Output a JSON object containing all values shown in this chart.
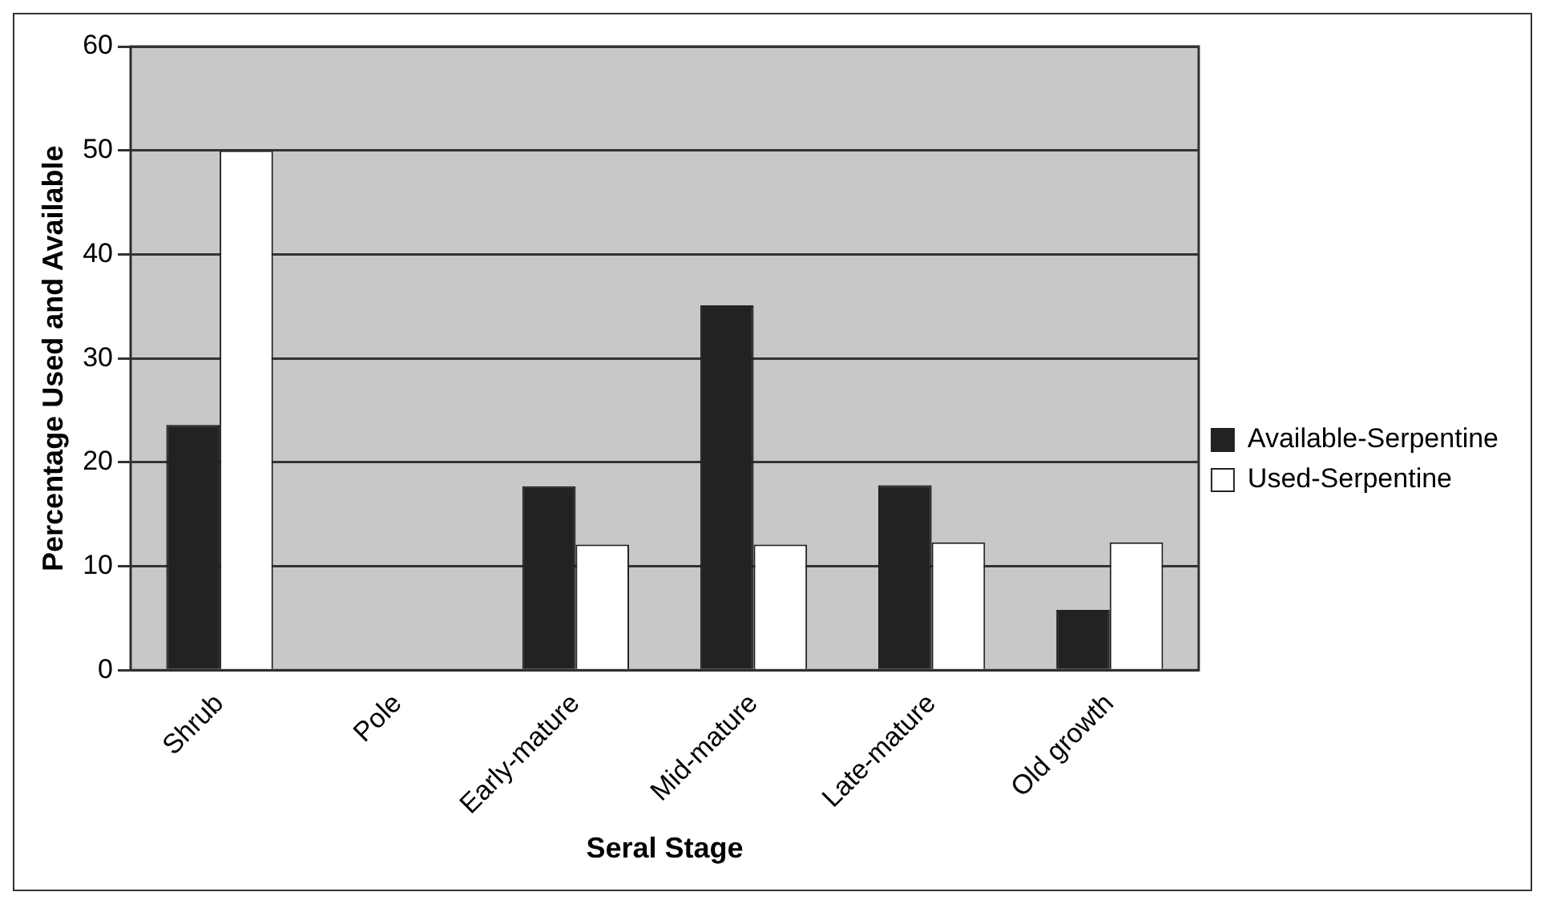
{
  "chart_data": {
    "type": "bar",
    "xlabel": "Seral Stage",
    "ylabel": "Percentage Used and Available",
    "categories": [
      "Shrub",
      "Pole",
      "Early-mature",
      "Mid-mature",
      "Late-mature",
      "Old growth"
    ],
    "series": [
      {
        "name": "Available-Serpentine",
        "color": "#222222",
        "values": [
          23.6,
          null,
          17.7,
          35.1,
          17.8,
          5.8
        ]
      },
      {
        "name": "Used-Serpentine",
        "color": "#ffffff",
        "values": [
          50,
          null,
          12.1,
          12.1,
          12.3,
          12.3
        ]
      }
    ],
    "ylim": [
      0,
      60
    ],
    "yticks": [
      0,
      10,
      20,
      30,
      40,
      50,
      60
    ],
    "grid": "y",
    "legend": "right"
  }
}
